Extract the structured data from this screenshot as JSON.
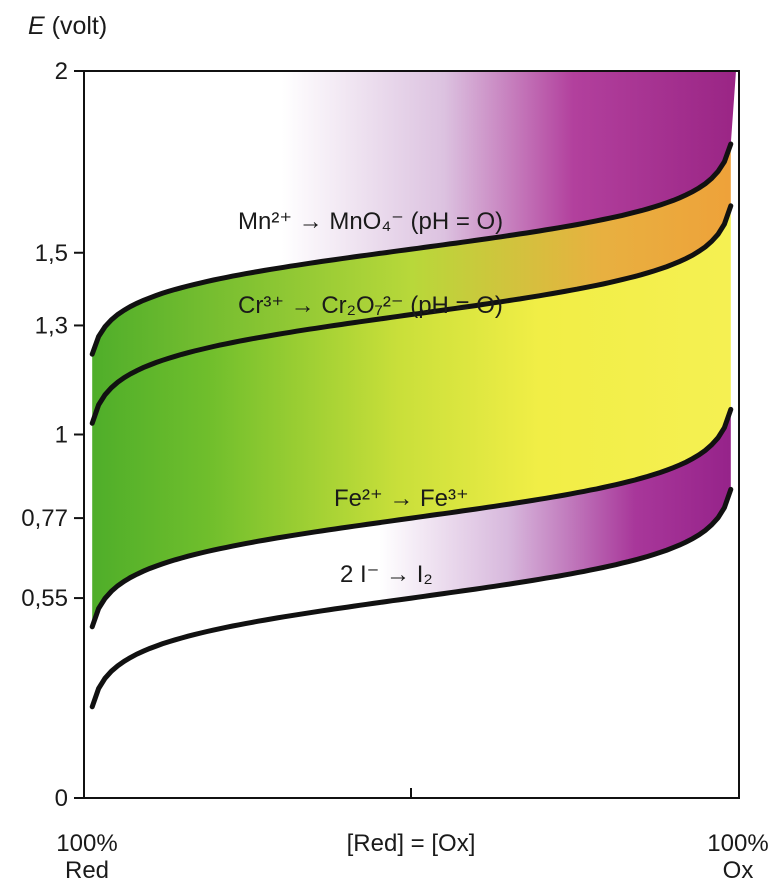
{
  "chart_data": {
    "type": "line",
    "title": "",
    "ylabel_italic": "E",
    "ylabel_rest": " (volt)",
    "ylim": [
      0,
      2
    ],
    "xlim": [
      0,
      1
    ],
    "yticks": [
      {
        "v": 0,
        "label": "0"
      },
      {
        "v": 0.55,
        "label": "0,55"
      },
      {
        "v": 0.77,
        "label": "0,77"
      },
      {
        "v": 1.0,
        "label": "1"
      },
      {
        "v": 1.3,
        "label": "1,3"
      },
      {
        "v": 1.5,
        "label": "1,5"
      },
      {
        "v": 2.0,
        "label": "2"
      }
    ],
    "xlabels": {
      "left": [
        "100%",
        "Red"
      ],
      "middle": "[Red] = [Ox]",
      "right": [
        "100%",
        "Ox"
      ]
    },
    "curve_labels": {
      "mn": "Mn²⁺ → MnO₄⁻  (pH = O)",
      "cr": "Cr³⁺ → Cr₂O₇²⁻  (pH = O)",
      "fe": "Fe²⁺ → Fe³⁺",
      "i": "2 I⁻ → I₂"
    },
    "series": [
      {
        "key": "mn",
        "E0": 1.51,
        "Emin": 1.22,
        "Emax": 1.8
      },
      {
        "key": "cr",
        "E0": 1.33,
        "Emin": 1.02,
        "Emax": 1.62
      },
      {
        "key": "fe",
        "E0": 0.77,
        "Emin": 0.48,
        "Emax": 1.08
      },
      {
        "key": "i",
        "E0": 0.55,
        "Emin": 0.26,
        "Emax": 0.86
      }
    ],
    "colors": {
      "green": "#4fb52a",
      "yellow": "#f2ee3c",
      "magenta": "#a0268a",
      "curve": "#111111"
    }
  }
}
